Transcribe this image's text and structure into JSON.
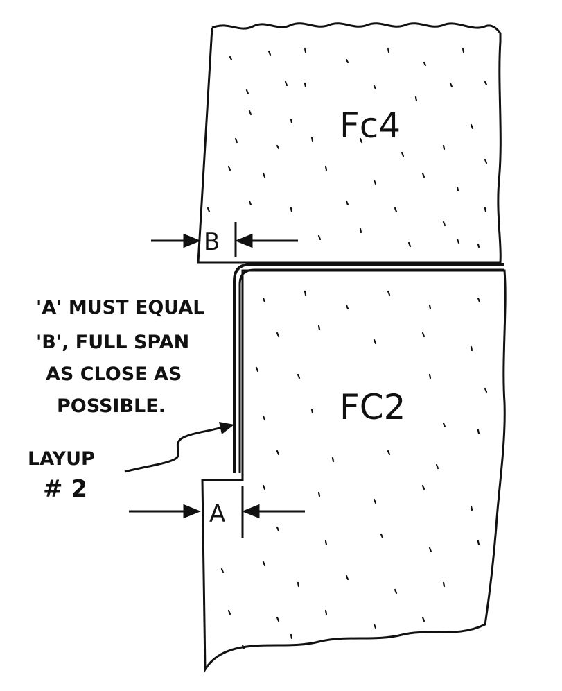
{
  "diagram": {
    "upper_part_label": "Fc4",
    "lower_part_label": "FC2",
    "dimension_b_label": "B",
    "dimension_a_label": "A",
    "note_lines": [
      "'A' MUST EQUAL",
      "'B', FULL SPAN",
      "AS CLOSE AS",
      "POSSIBLE."
    ],
    "layup_label_lines": [
      "LAYUP",
      "# 2"
    ]
  },
  "colors": {
    "ink": "#111111",
    "paper": "#ffffff"
  }
}
